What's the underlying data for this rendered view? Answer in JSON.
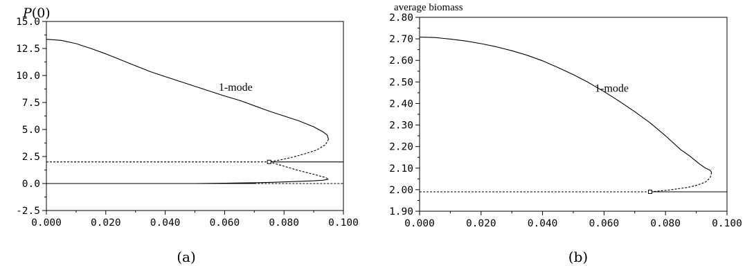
{
  "chart_data": [
    {
      "id": "a",
      "type": "line",
      "ylabel": "P(0)",
      "ylabel_parts": {
        "italic": "P",
        "rest": "(0)"
      },
      "caption": "(a)",
      "xlim": [
        0.0,
        0.1
      ],
      "ylim": [
        -2.5,
        15.0
      ],
      "x_ticks": [
        "0.000",
        "0.020",
        "0.040",
        "0.060",
        "0.080",
        "0.100"
      ],
      "y_ticks": [
        "-2.5",
        "0.0",
        "2.5",
        "5.0",
        "7.5",
        "10.0",
        "12.5",
        "15.0"
      ],
      "annotations": [
        {
          "text": "1-mode",
          "x": 0.058,
          "y": 8.6
        }
      ],
      "bifurcation_point": {
        "x": 0.075,
        "y": 2.0
      },
      "series": [
        {
          "style": "solid",
          "x": [
            0.0,
            0.005,
            0.01,
            0.015,
            0.02,
            0.025,
            0.03,
            0.035,
            0.04,
            0.045,
            0.05,
            0.055,
            0.06,
            0.065,
            0.07,
            0.075,
            0.08,
            0.085,
            0.09,
            0.093,
            0.0945,
            0.095
          ],
          "y": [
            13.35,
            13.25,
            12.95,
            12.5,
            12.0,
            11.45,
            10.9,
            10.35,
            9.9,
            9.45,
            9.0,
            8.55,
            8.1,
            7.7,
            7.2,
            6.7,
            6.25,
            5.8,
            5.25,
            4.8,
            4.5,
            4.1
          ]
        },
        {
          "style": "dashed",
          "x": [
            0.095,
            0.094,
            0.091,
            0.087,
            0.083,
            0.079,
            0.077,
            0.075
          ],
          "y": [
            4.1,
            3.6,
            3.1,
            2.75,
            2.45,
            2.2,
            2.1,
            2.0
          ]
        },
        {
          "style": "dashed",
          "x": [
            0.075,
            0.08,
            0.085,
            0.09,
            0.094,
            0.095
          ],
          "y": [
            2.0,
            1.6,
            1.2,
            0.85,
            0.55,
            0.4
          ]
        },
        {
          "style": "solid",
          "x": [
            0.095,
            0.093,
            0.09,
            0.085,
            0.08,
            0.075,
            0.07,
            0.065,
            0.06,
            0.055,
            0.05
          ],
          "y": [
            0.4,
            0.3,
            0.25,
            0.2,
            0.15,
            0.1,
            0.07,
            0.05,
            0.03,
            0.01,
            0.0
          ]
        },
        {
          "style": "dashed",
          "x": [
            0.0,
            0.075
          ],
          "y": [
            2.0,
            2.0
          ]
        },
        {
          "style": "solid",
          "x": [
            0.075,
            0.1
          ],
          "y": [
            2.0,
            2.0
          ]
        },
        {
          "style": "solid",
          "x": [
            0.0,
            0.07
          ],
          "y": [
            0.0,
            0.0
          ]
        },
        {
          "style": "dashed",
          "x": [
            0.07,
            0.1
          ],
          "y": [
            0.0,
            0.0
          ]
        }
      ]
    },
    {
      "id": "b",
      "type": "line",
      "ylabel": "average biomass",
      "caption": "(b)",
      "xlim": [
        0.0,
        0.1
      ],
      "ylim": [
        1.9,
        2.8
      ],
      "x_ticks": [
        "0.000",
        "0.020",
        "0.040",
        "0.060",
        "0.080",
        "0.100"
      ],
      "y_ticks": [
        "1.90",
        "2.00",
        "2.10",
        "2.20",
        "2.30",
        "2.40",
        "2.50",
        "2.60",
        "2.70",
        "2.80"
      ],
      "annotations": [
        {
          "text": "1-mode",
          "x": 0.057,
          "y": 2.455
        }
      ],
      "bifurcation_point": {
        "x": 0.075,
        "y": 1.99
      },
      "series": [
        {
          "style": "solid",
          "x": [
            0.0,
            0.005,
            0.01,
            0.015,
            0.02,
            0.025,
            0.03,
            0.035,
            0.04,
            0.045,
            0.05,
            0.055,
            0.06,
            0.065,
            0.07,
            0.075,
            0.08,
            0.085,
            0.088,
            0.091,
            0.093,
            0.0945,
            0.095
          ],
          "y": [
            2.708,
            2.706,
            2.699,
            2.69,
            2.678,
            2.663,
            2.645,
            2.624,
            2.598,
            2.567,
            2.534,
            2.497,
            2.455,
            2.41,
            2.362,
            2.31,
            2.25,
            2.185,
            2.155,
            2.12,
            2.1,
            2.09,
            2.08
          ]
        },
        {
          "style": "dashed",
          "x": [
            0.095,
            0.0945,
            0.093,
            0.09,
            0.087,
            0.084,
            0.081,
            0.078,
            0.076,
            0.075
          ],
          "y": [
            2.08,
            2.055,
            2.035,
            2.02,
            2.01,
            2.004,
            1.998,
            1.994,
            1.991,
            1.99
          ]
        },
        {
          "style": "dashed",
          "x": [
            0.0,
            0.075
          ],
          "y": [
            1.99,
            1.99
          ]
        },
        {
          "style": "solid",
          "x": [
            0.075,
            0.1
          ],
          "y": [
            1.99,
            1.99
          ]
        }
      ]
    }
  ]
}
